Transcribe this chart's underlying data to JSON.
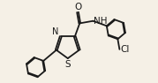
{
  "background_color": "#f5f0e6",
  "line_color": "#1a1a1a",
  "line_width": 1.3,
  "font_size": 7.5,
  "atoms": {
    "S_label": "S",
    "N_label": "N",
    "O_label": "O",
    "NH_label": "NH",
    "Cl_label": "Cl"
  },
  "figsize": [
    1.79,
    0.94
  ],
  "dpi": 100,
  "xlim": [
    0,
    9.5
  ],
  "ylim": [
    0,
    5
  ]
}
